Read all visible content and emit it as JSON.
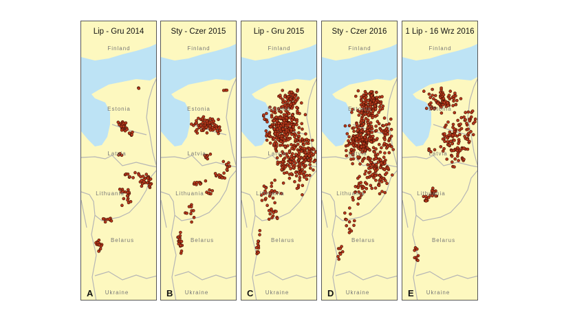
{
  "colors": {
    "land": "#fdf8bf",
    "sea": "#bde3f5",
    "border": "#b5b5b5",
    "point": "#b8381a",
    "point_outline": "#3a1005"
  },
  "countries": [
    "Finland",
    "Estonia",
    "Latvia",
    "Lithuania",
    "Belarus",
    "Ukraine"
  ],
  "panels": [
    {
      "letter": "A",
      "title": "Lip - Gru 2014"
    },
    {
      "letter": "B",
      "title": "Sty  - Czer 2015"
    },
    {
      "letter": "C",
      "title": "Lip - Gru 2015"
    },
    {
      "letter": "D",
      "title": "Sty - Czer 2016"
    },
    {
      "letter": "E",
      "title": "1 Lip - 16 Wrz 2016"
    }
  ]
}
